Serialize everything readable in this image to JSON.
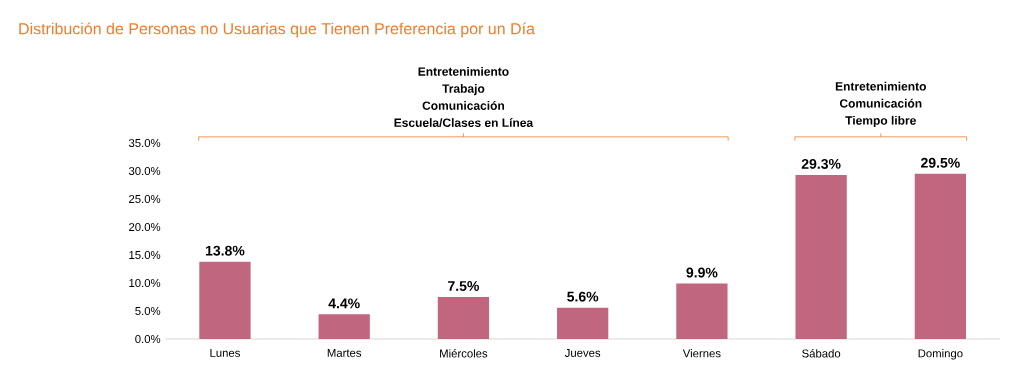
{
  "chart_data": {
    "type": "bar",
    "title": "Distribución de Personas no Usuarias que Tienen Preferencia por un Día",
    "categories": [
      "Lunes",
      "Martes",
      "Miércoles",
      "Jueves",
      "Viernes",
      "Sábado",
      "Domingo"
    ],
    "values": [
      13.8,
      4.4,
      7.5,
      5.6,
      9.9,
      29.3,
      29.5
    ],
    "value_labels": [
      "13.8%",
      "4.4%",
      "7.5%",
      "5.6%",
      "9.9%",
      "29.3%",
      "29.5%"
    ],
    "color": "#c0677f",
    "ylim": [
      0,
      35
    ],
    "yticks": [
      {
        "value": 0,
        "label": "0.0%"
      },
      {
        "value": 5,
        "label": "5.0%"
      },
      {
        "value": 10,
        "label": "10.0%"
      },
      {
        "value": 15,
        "label": "15.0%"
      },
      {
        "value": 20,
        "label": "20.0%"
      },
      {
        "value": 25,
        "label": "25.0%"
      },
      {
        "value": 30,
        "label": "30.0%"
      },
      {
        "value": 35,
        "label": "35.0%"
      }
    ],
    "annotations": [
      "Entretenimiento",
      "Trabajo",
      "Comunicación",
      "Escuela/Clases en Línea",
      "Entretenimiento",
      "Comunicación",
      "Tiempo libre"
    ]
  }
}
